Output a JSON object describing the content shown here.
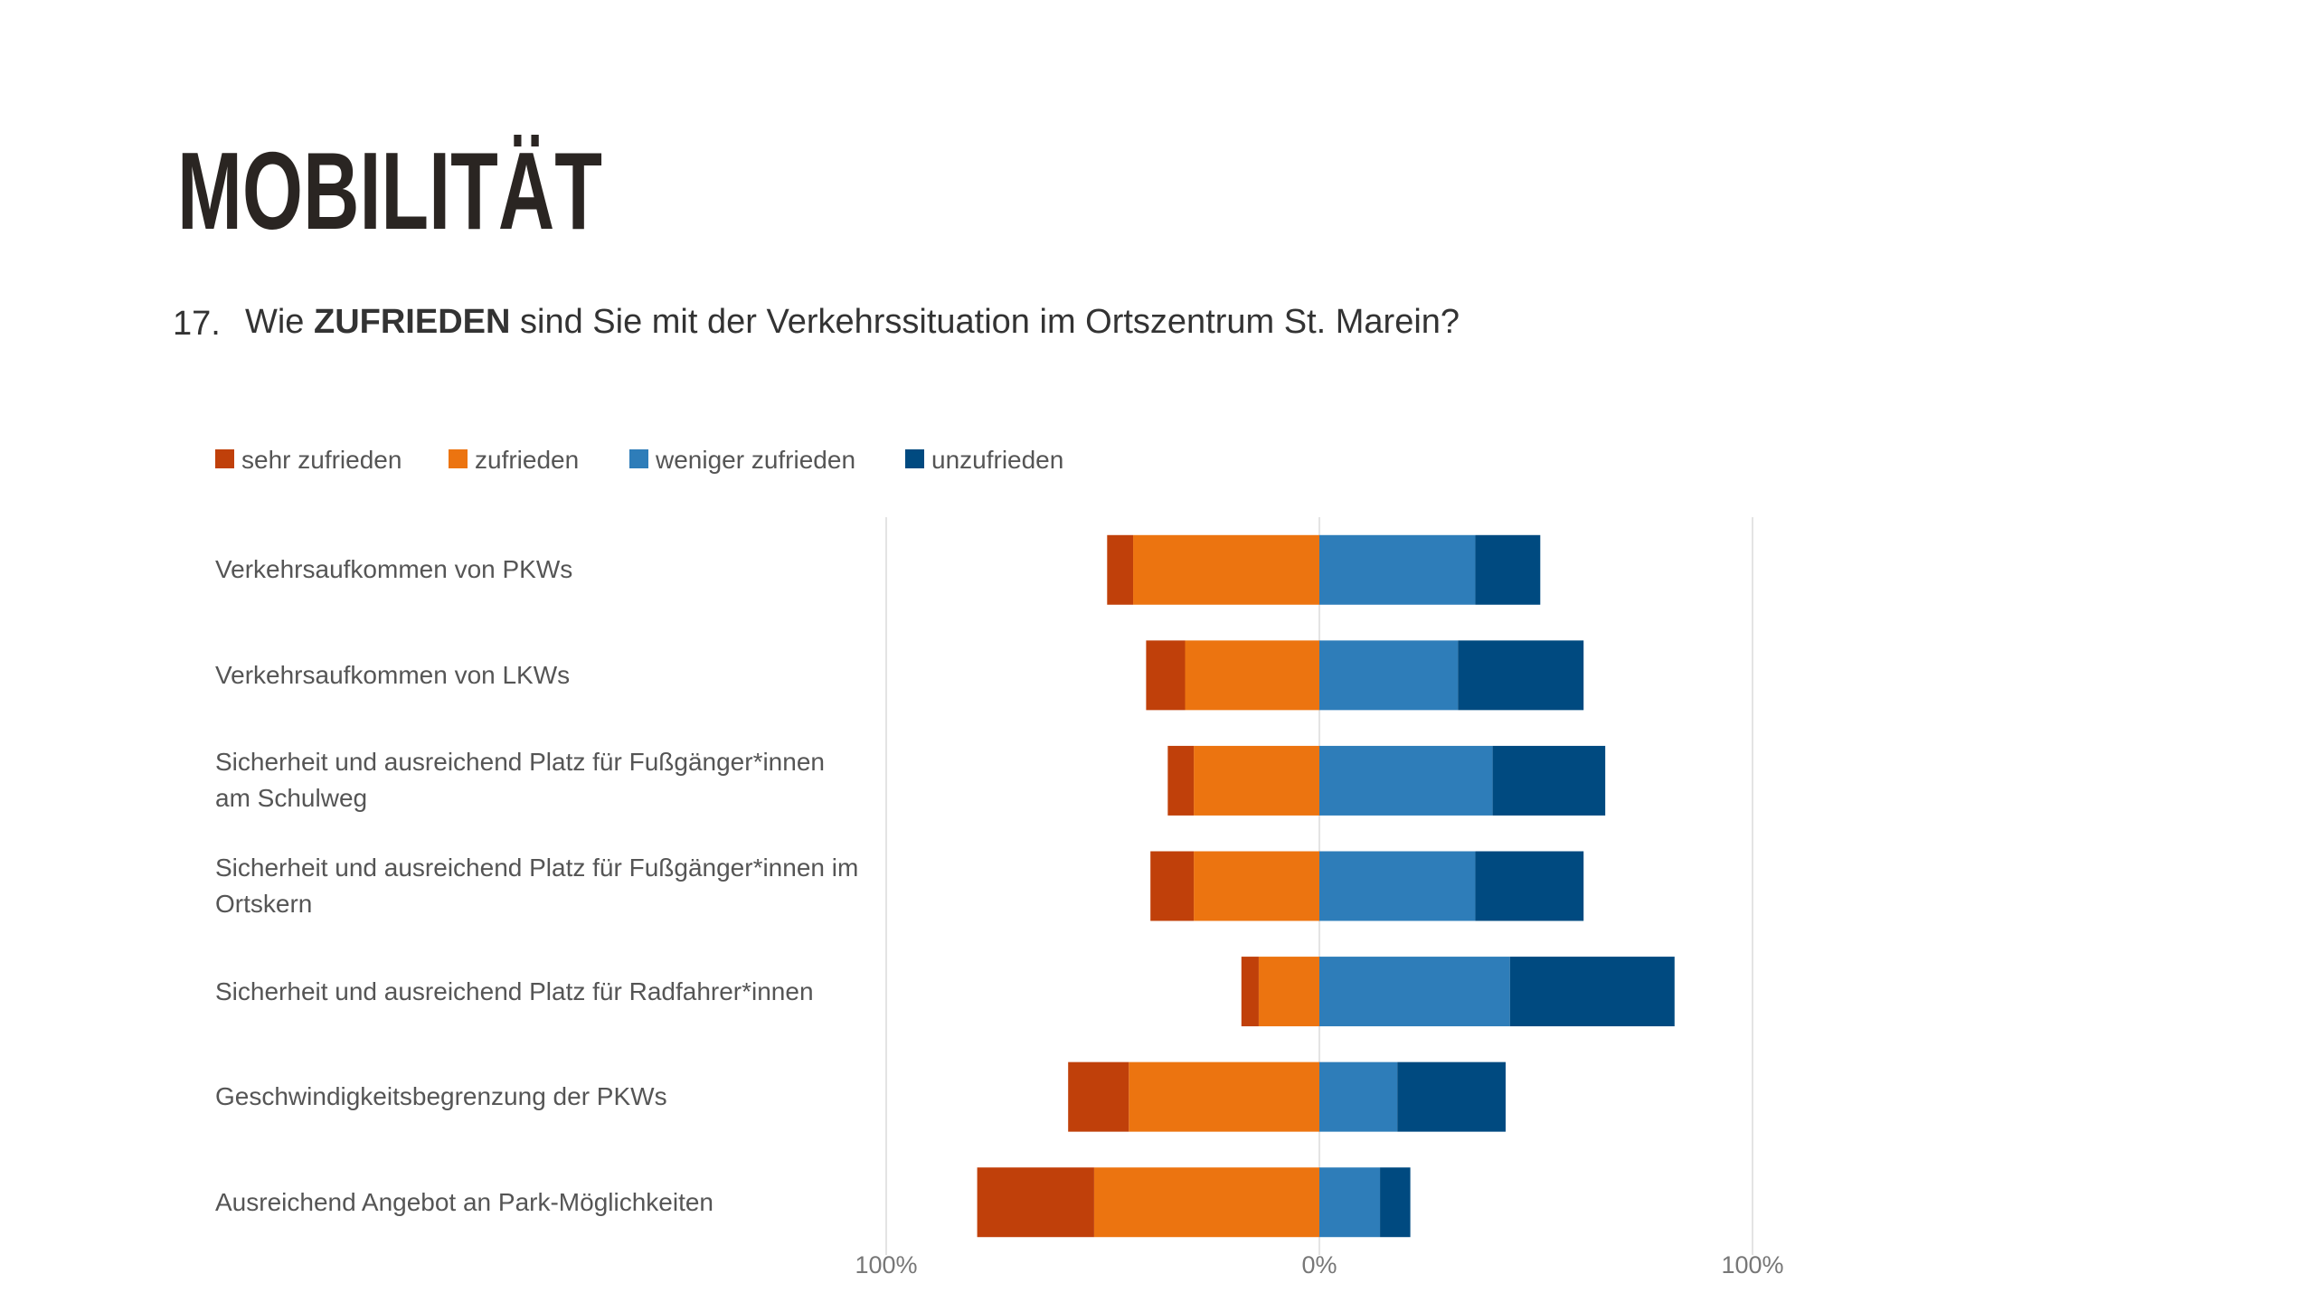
{
  "header": {
    "title": "MOBILITÄT",
    "question_number": "17.",
    "question": [
      "Wie ",
      "ZUFRIEDEN",
      " sind Sie mit der Verkehrssituation im Ortszentrum St. Marein?"
    ]
  },
  "chart_data": {
    "type": "diverging_bar",
    "categories": [
      "Verkehrsaufkommen von PKWs",
      "Verkehrsaufkommen von LKWs",
      "Sicherheit und ausreichend Platz für Fußgänger*innen am Schulweg",
      "Sicherheit und ausreichend Platz für Fußgänger*innen im Ortskern",
      "Sicherheit und ausreichend Platz für Radfahrer*innen",
      "Geschwindigkeitsbegrenzung der PKWs",
      "Ausreichend Angebot an Park-Möglichkeiten"
    ],
    "series": [
      {
        "name": "sehr zufrieden",
        "color": "#c0400a",
        "values": [
          6,
          9,
          6,
          10,
          4,
          14,
          27
        ]
      },
      {
        "name": "zufrieden",
        "color": "#ec7410",
        "values": [
          43,
          31,
          29,
          29,
          14,
          44,
          52
        ]
      },
      {
        "name": "weniger zufrieden",
        "color": "#2e7db9",
        "values": [
          36,
          32,
          40,
          36,
          44,
          18,
          14
        ]
      },
      {
        "name": "unzufrieden",
        "color": "#004a80",
        "values": [
          15,
          29,
          26,
          25,
          38,
          25,
          7
        ]
      }
    ],
    "xlim": [
      -100,
      100
    ],
    "xticks": [
      {
        "value": -100,
        "label": "100%"
      },
      {
        "value": 0,
        "label": "0%"
      },
      {
        "value": 100,
        "label": "100%"
      }
    ],
    "grid": true,
    "legend": "top"
  }
}
